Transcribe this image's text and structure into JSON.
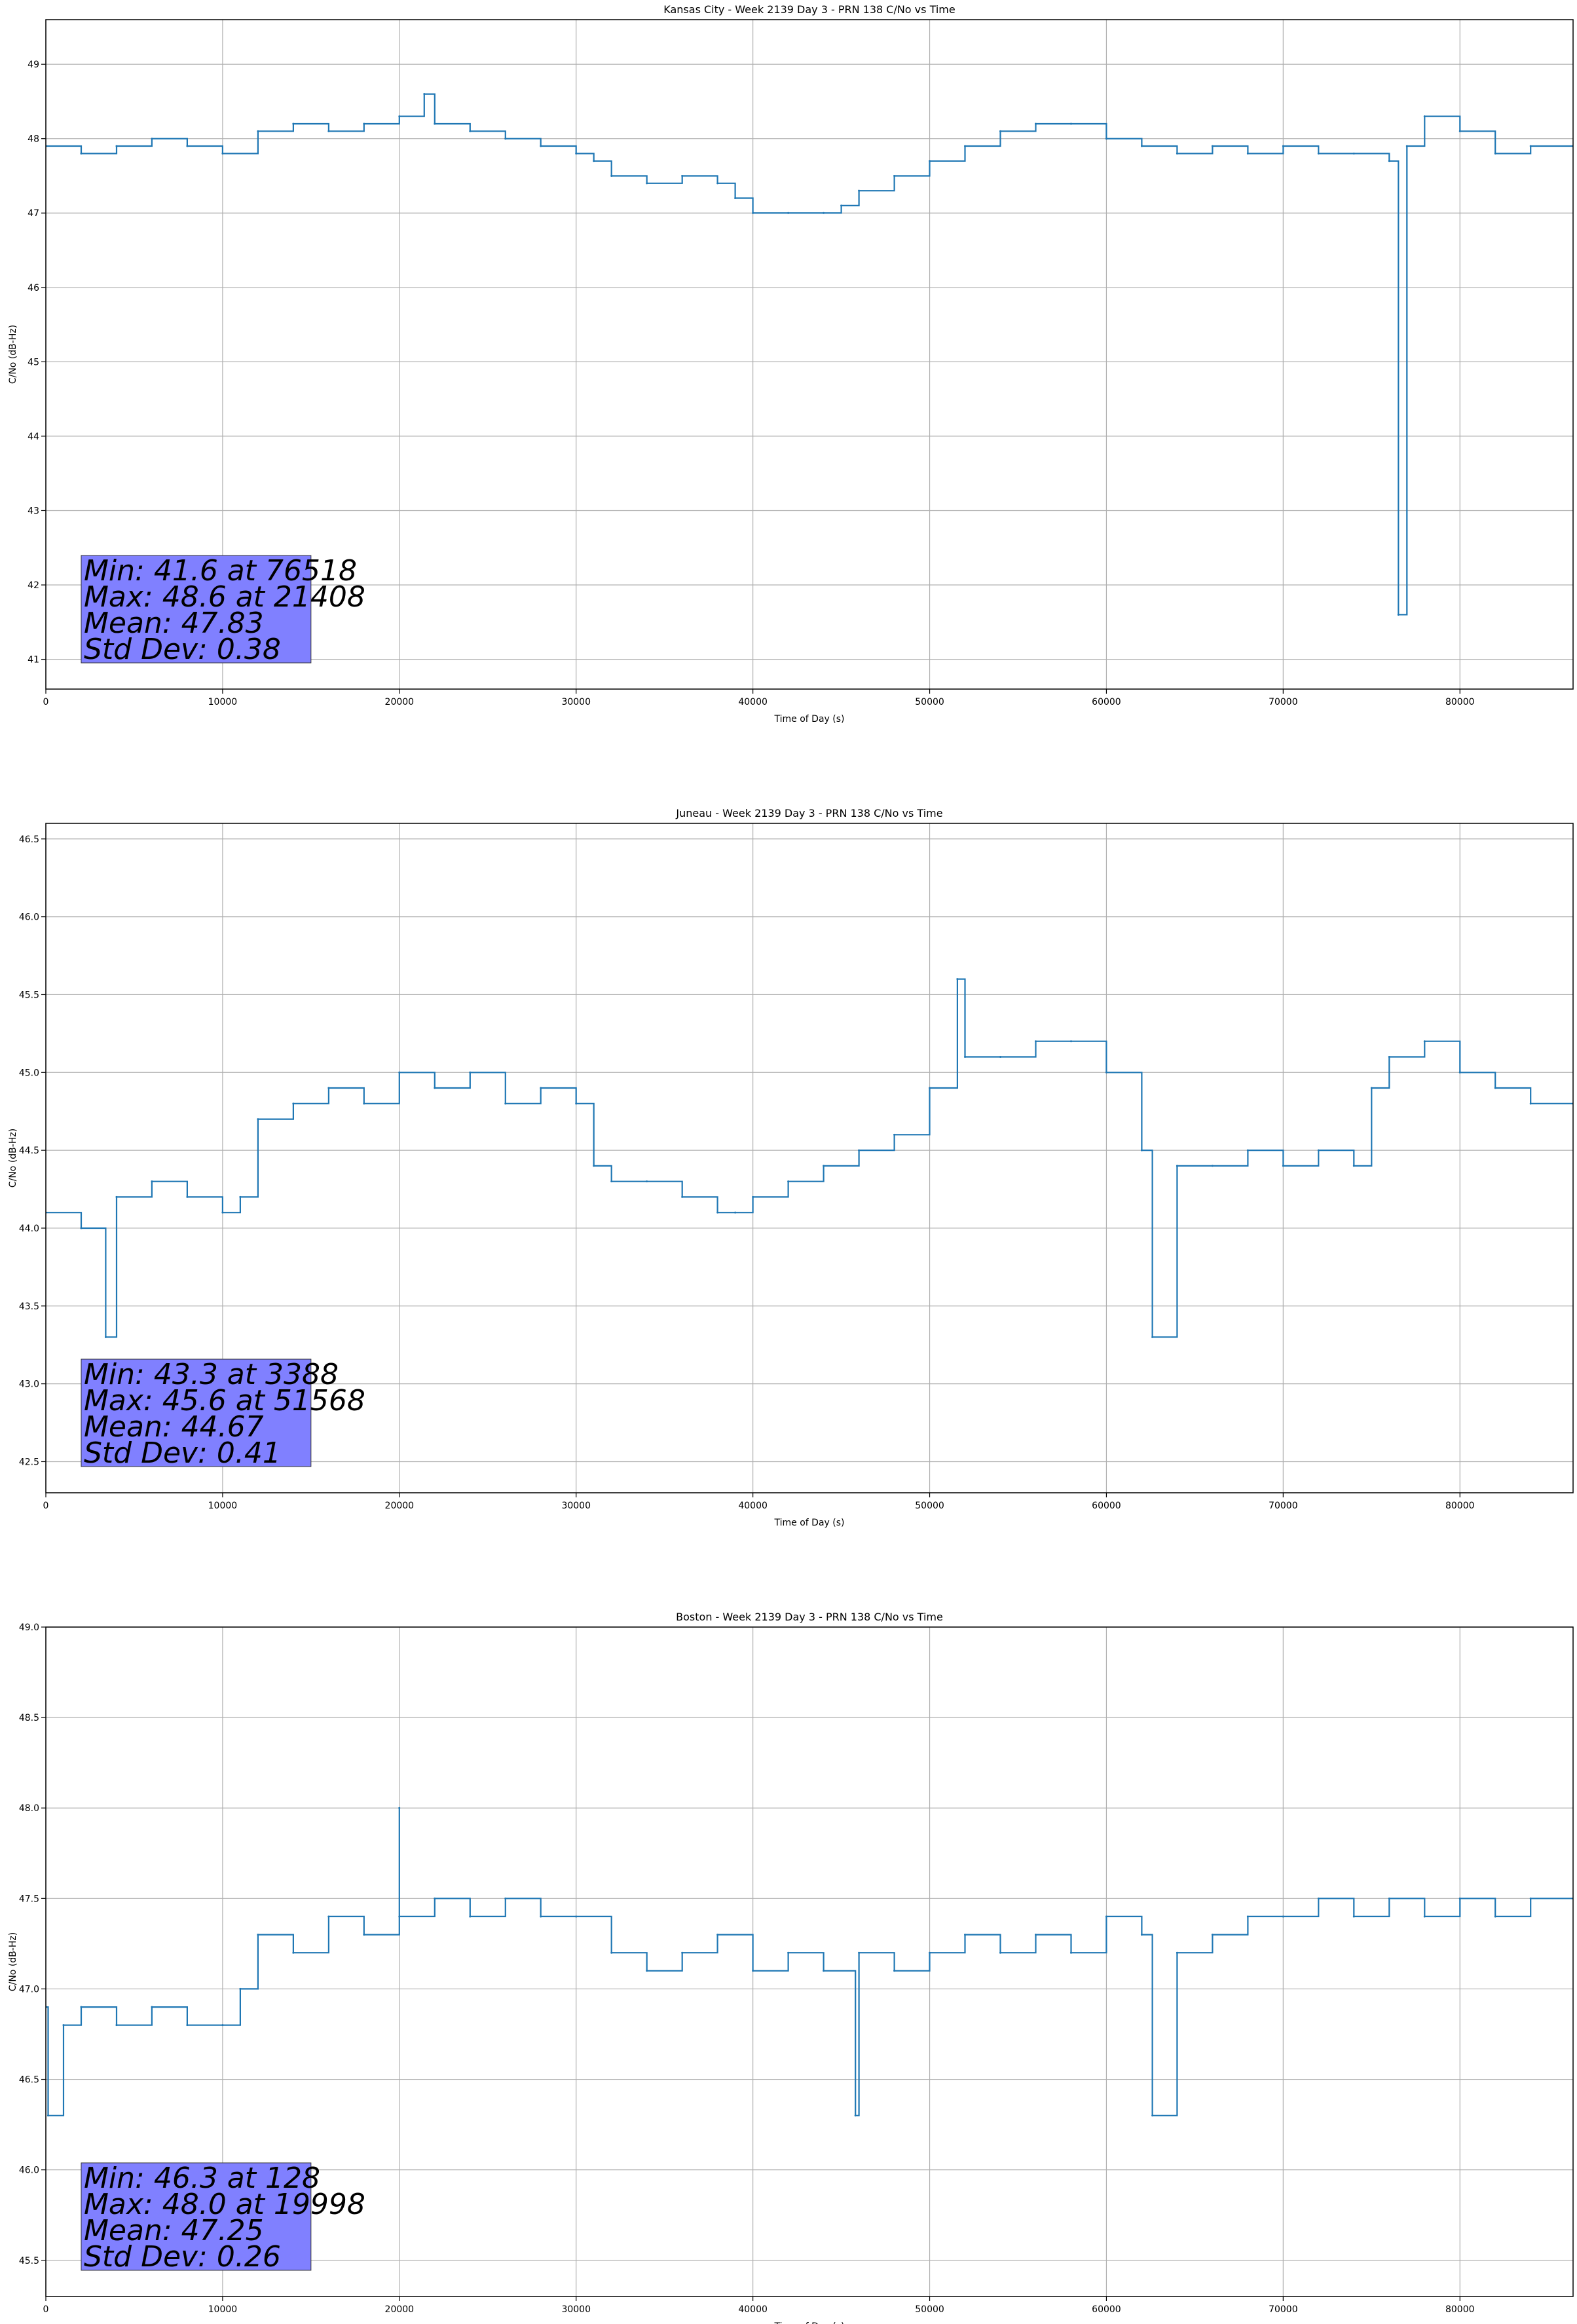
{
  "chart_data": [
    {
      "type": "line",
      "title": "Kansas City - Week 2139 Day 3 - PRN 138 C/No vs Time",
      "xlabel": "Time of Day (s)",
      "ylabel": "C/No (dB-Hz)",
      "xlim": [
        0,
        86400
      ],
      "ylim": [
        40.6,
        49.6
      ],
      "xticks": [
        0,
        10000,
        20000,
        30000,
        40000,
        50000,
        60000,
        70000,
        80000
      ],
      "yticks": [
        "41",
        "42",
        "43",
        "44",
        "45",
        "46",
        "47",
        "48",
        "49"
      ],
      "grid": true,
      "color": "#1f77b4",
      "stats": [
        "Min: 41.6 at 76518",
        "Max: 48.6 at 21408",
        "Mean: 47.83",
        "Std Dev: 0.38"
      ],
      "series": [
        {
          "x": [
            0,
            2000,
            4000,
            6000,
            8000,
            10000,
            12000,
            14000,
            16000,
            18000,
            20000,
            21408,
            22000,
            24000,
            26000,
            28000,
            30000,
            31000,
            32000,
            34000,
            36000,
            38000,
            39000,
            40000,
            42000,
            44000,
            45000,
            46000,
            48000,
            50000,
            52000,
            54000,
            56000,
            58000,
            60000,
            62000,
            64000,
            66000,
            68000,
            70000,
            72000,
            74000,
            76000,
            76518,
            77000,
            78000,
            80000,
            82000,
            84000,
            86400
          ],
          "y": [
            47.9,
            47.8,
            47.9,
            48.0,
            47.9,
            47.8,
            48.1,
            48.2,
            48.1,
            48.2,
            48.3,
            48.6,
            48.2,
            48.1,
            48.0,
            47.9,
            47.8,
            47.7,
            47.5,
            47.4,
            47.5,
            47.4,
            47.2,
            47.0,
            47.0,
            47.0,
            47.1,
            47.3,
            47.5,
            47.7,
            47.9,
            48.1,
            48.2,
            48.2,
            48.0,
            47.9,
            47.8,
            47.9,
            47.8,
            47.9,
            47.8,
            47.8,
            47.7,
            41.6,
            47.9,
            48.3,
            48.1,
            47.8,
            47.9,
            47.9
          ]
        }
      ]
    },
    {
      "type": "line",
      "title": "Juneau - Week 2139 Day 3 - PRN 138 C/No vs Time",
      "xlabel": "Time of Day (s)",
      "ylabel": "C/No (dB-Hz)",
      "xlim": [
        0,
        86400
      ],
      "ylim": [
        42.3,
        46.6
      ],
      "xticks": [
        0,
        10000,
        20000,
        30000,
        40000,
        50000,
        60000,
        70000,
        80000
      ],
      "yticks": [
        "42.5",
        "43.0",
        "43.5",
        "44.0",
        "44.5",
        "45.0",
        "45.5",
        "46.0",
        "46.5"
      ],
      "grid": true,
      "color": "#1f77b4",
      "stats": [
        "Min: 43.3 at 3388",
        "Max: 45.6 at 51568",
        "Mean: 44.67",
        "Std Dev: 0.41"
      ],
      "series": [
        {
          "x": [
            0,
            2000,
            3388,
            4000,
            6000,
            8000,
            10000,
            11000,
            12000,
            14000,
            16000,
            18000,
            20000,
            22000,
            24000,
            26000,
            28000,
            30000,
            31000,
            32000,
            34000,
            36000,
            38000,
            39000,
            40000,
            42000,
            44000,
            46000,
            48000,
            50000,
            51568,
            52000,
            54000,
            56000,
            58000,
            60000,
            62000,
            62600,
            64000,
            66000,
            68000,
            70000,
            72000,
            74000,
            75000,
            76000,
            78000,
            80000,
            82000,
            84000,
            86400
          ],
          "y": [
            44.1,
            44.0,
            43.3,
            44.2,
            44.3,
            44.2,
            44.1,
            44.2,
            44.7,
            44.8,
            44.9,
            44.8,
            45.0,
            44.9,
            45.0,
            44.8,
            44.9,
            44.8,
            44.4,
            44.3,
            44.3,
            44.2,
            44.1,
            44.1,
            44.2,
            44.3,
            44.4,
            44.5,
            44.6,
            44.9,
            45.6,
            45.1,
            45.1,
            45.2,
            45.2,
            45.0,
            44.5,
            43.3,
            44.4,
            44.4,
            44.5,
            44.4,
            44.5,
            44.4,
            44.9,
            45.1,
            45.2,
            45.0,
            44.9,
            44.8,
            44.8
          ]
        }
      ]
    },
    {
      "type": "line",
      "title": "Boston - Week 2139 Day 3 - PRN 138 C/No vs Time",
      "xlabel": "Time of Day (s)",
      "ylabel": "C/No (dB-Hz)",
      "xlim": [
        0,
        86400
      ],
      "ylim": [
        45.3,
        49.0
      ],
      "xticks": [
        0,
        10000,
        20000,
        30000,
        40000,
        50000,
        60000,
        70000,
        80000
      ],
      "yticks": [
        "45.5",
        "46.0",
        "46.5",
        "47.0",
        "47.5",
        "48.0",
        "48.5",
        "49.0"
      ],
      "grid": true,
      "color": "#1f77b4",
      "stats": [
        "Min: 46.3 at 128",
        "Max: 48.0 at 19998",
        "Mean: 47.25",
        "Std Dev: 0.26"
      ],
      "series": [
        {
          "x": [
            0,
            128,
            1000,
            2000,
            4000,
            6000,
            8000,
            10000,
            11000,
            12000,
            14000,
            16000,
            18000,
            19998,
            20000,
            22000,
            24000,
            26000,
            28000,
            30000,
            32000,
            34000,
            36000,
            38000,
            40000,
            42000,
            44000,
            45800,
            46000,
            48000,
            50000,
            52000,
            54000,
            56000,
            58000,
            60000,
            62000,
            62600,
            64000,
            66000,
            68000,
            70000,
            72000,
            74000,
            76000,
            78000,
            80000,
            82000,
            84000,
            86400
          ],
          "y": [
            46.9,
            46.3,
            46.8,
            46.9,
            46.8,
            46.9,
            46.8,
            46.8,
            47.0,
            47.3,
            47.2,
            47.4,
            47.3,
            48.0,
            47.4,
            47.5,
            47.4,
            47.5,
            47.4,
            47.4,
            47.2,
            47.1,
            47.2,
            47.3,
            47.1,
            47.2,
            47.1,
            46.3,
            47.2,
            47.1,
            47.2,
            47.3,
            47.2,
            47.3,
            47.2,
            47.4,
            47.3,
            46.3,
            47.2,
            47.3,
            47.4,
            47.4,
            47.5,
            47.4,
            47.5,
            47.4,
            47.5,
            47.4,
            47.5,
            47.5
          ]
        }
      ]
    }
  ]
}
